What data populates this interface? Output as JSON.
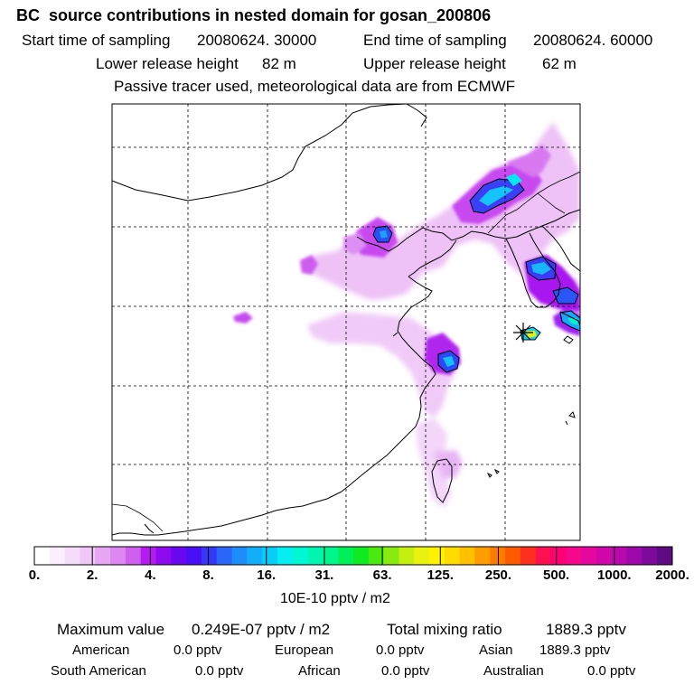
{
  "title": "BC  source contributions in nested domain for gosan_200806",
  "header": {
    "start_label": "Start time of sampling",
    "start_value": "20080624. 30000",
    "end_label": "End time of sampling",
    "end_value": "20080624. 60000",
    "lower_label": "Lower release height",
    "lower_value": "82 m",
    "upper_label": "Upper release height",
    "upper_value": "62 m",
    "note": "Passive tracer used, meteorological data are from ECMWF"
  },
  "colorbar": {
    "labels": [
      "0.",
      "2.",
      "4.",
      "8.",
      "16.",
      "31.",
      "63.",
      "125.",
      "250.",
      "500.",
      "1000.",
      "2000."
    ],
    "colors": [
      "#ffffff",
      "#fbeefe",
      "#f6dcfb",
      "#f0c8f8",
      "#e6a6f4",
      "#dc88f0",
      "#cf5fee",
      "#b51bf0",
      "#8e0bf0",
      "#6a08f2",
      "#4a10f5",
      "#3638f7",
      "#2a66f8",
      "#1e8cf9",
      "#12aefa",
      "#0acdf9",
      "#05eef2",
      "#00f7d4",
      "#00f5b0",
      "#00f58c",
      "#00f05a",
      "#10ea20",
      "#4aea10",
      "#88ea10",
      "#c4ef10",
      "#e9f210",
      "#fff200",
      "#ffdc00",
      "#ffc000",
      "#ff9d00",
      "#ff7a00",
      "#ff5a00",
      "#ff3020",
      "#ff1050",
      "#ff0077",
      "#f6088d",
      "#e6089e",
      "#d008a9",
      "#b808ae",
      "#9c08aa",
      "#7e0a9c",
      "#5e0a80"
    ],
    "unit": "10E-10 pptv / m2"
  },
  "stats": {
    "max_label": "Maximum value",
    "max_value": "0.249E-07 pptv / m2",
    "total_label": "Total mixing ratio",
    "total_value": "1889.3 pptv"
  },
  "regions": [
    {
      "name": "American",
      "value": "0.0 pptv"
    },
    {
      "name": "European",
      "value": "0.0 pptv"
    },
    {
      "name": "Asian",
      "value": "1889.3 pptv"
    },
    {
      "name": "South American",
      "value": "0.0 pptv"
    },
    {
      "name": "African",
      "value": "0.0 pptv"
    },
    {
      "name": "Australian",
      "value": "0.0 pptv"
    }
  ]
}
